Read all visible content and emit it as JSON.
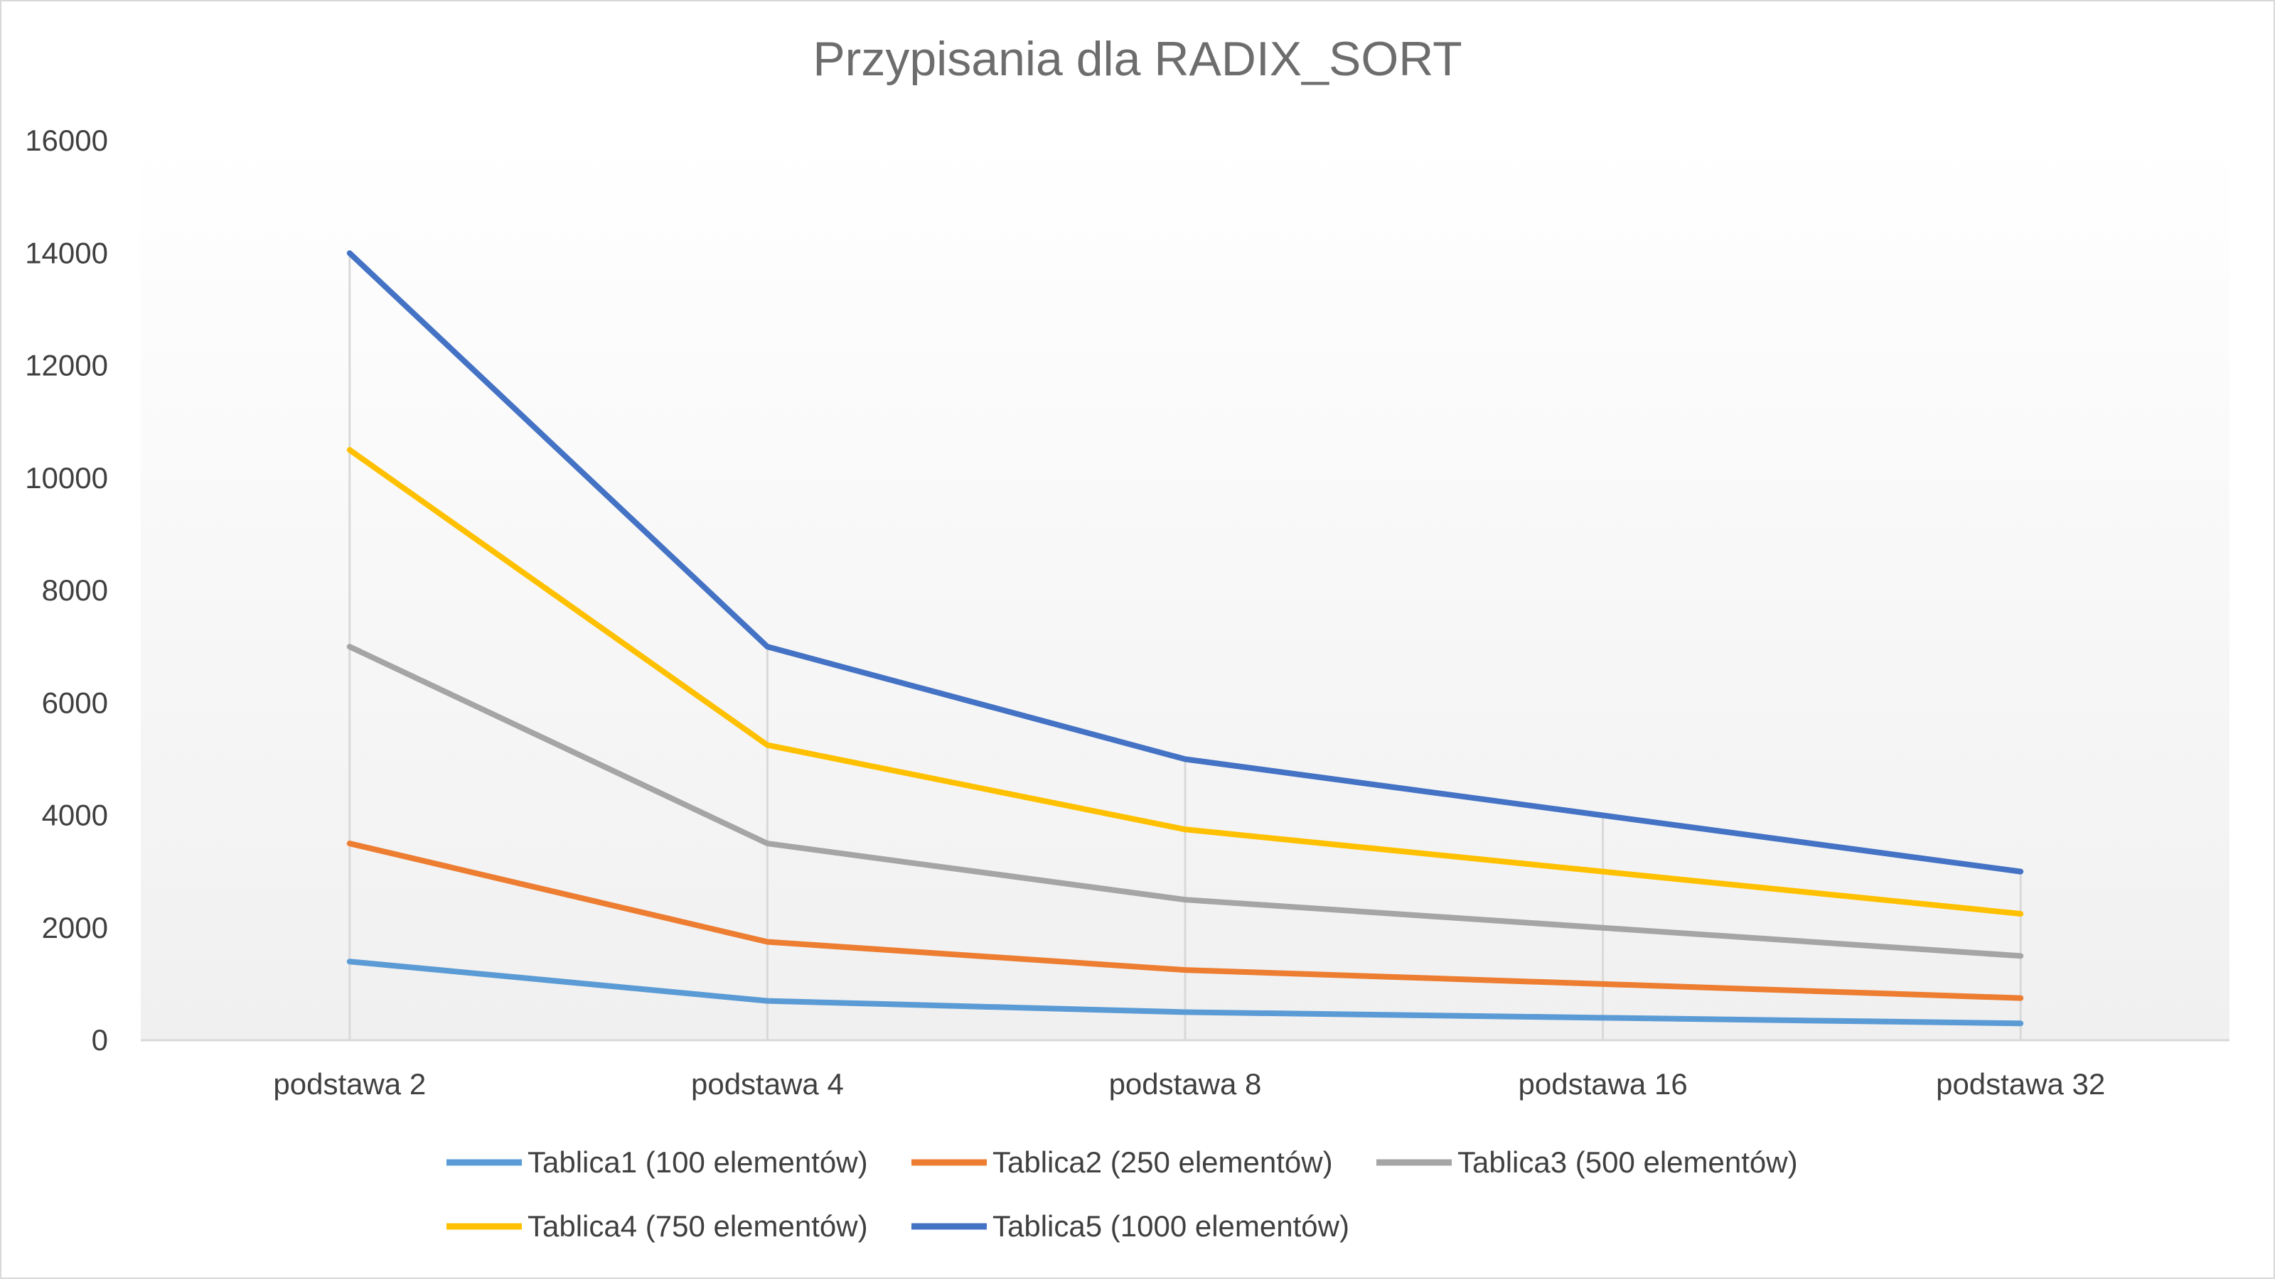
{
  "chart_data": {
    "type": "line",
    "title": "Przypisania dla RADIX_SORT",
    "xlabel": "",
    "ylabel": "",
    "categories": [
      "podstawa 2",
      "podstawa 4",
      "podstawa 8",
      "podstawa 16",
      "podstawa 32"
    ],
    "ylim": [
      0,
      16000
    ],
    "yticks": [
      0,
      2000,
      4000,
      6000,
      8000,
      10000,
      12000,
      14000,
      16000
    ],
    "grid": "vertical drop lines",
    "legend_position": "bottom",
    "series": [
      {
        "name": "Tablica1 (100 elementów)",
        "color": "#5b9bd5",
        "values": [
          1400,
          700,
          500,
          400,
          300
        ]
      },
      {
        "name": "Tablica2 (250 elementów)",
        "color": "#ed7d31",
        "values": [
          3500,
          1750,
          1250,
          1000,
          750
        ]
      },
      {
        "name": "Tablica3 (500 elementów)",
        "color": "#a5a5a5",
        "values": [
          7000,
          3500,
          2500,
          2000,
          1500
        ]
      },
      {
        "name": "Tablica4 (750 elementów)",
        "color": "#ffc000",
        "values": [
          10500,
          5250,
          3750,
          3000,
          2250
        ]
      },
      {
        "name": "Tablica5 (1000 elementów)",
        "color": "#4472c4",
        "values": [
          14000,
          7000,
          5000,
          4000,
          3000
        ]
      }
    ]
  }
}
